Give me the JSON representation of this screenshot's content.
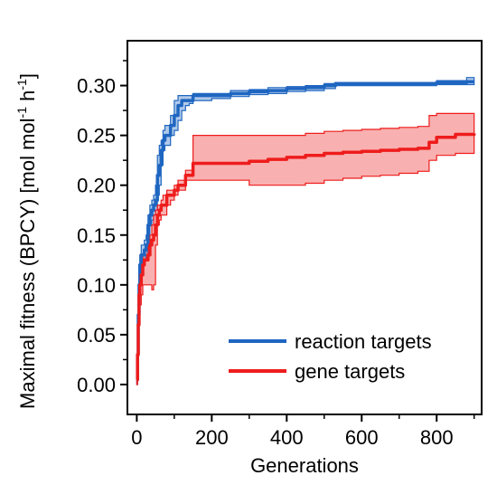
{
  "chart_data": {
    "type": "line",
    "xlabel": "Generations",
    "ylabel_main": "Maximal fitness (BPCY) [mol mol",
    "ylabel_sup1": "-1",
    "ylabel_mid": " h",
    "ylabel_sup2": "-1",
    "ylabel_end": "]",
    "xlim": [
      -25,
      920
    ],
    "ylim": [
      -0.03,
      0.345
    ],
    "x_ticks": [
      0,
      200,
      400,
      600,
      800
    ],
    "x_tick_labels": [
      "0",
      "200",
      "400",
      "600",
      "800"
    ],
    "y_ticks": [
      0.0,
      0.05,
      0.1,
      0.15,
      0.2,
      0.25,
      0.3
    ],
    "y_tick_labels": [
      "0.00",
      "0.05",
      "0.10",
      "0.15",
      "0.20",
      "0.25",
      "0.30"
    ],
    "legend_position": "bottom-right",
    "series": [
      {
        "name": "reaction targets",
        "color": "#1f66c1",
        "band_color": "#1f66c1",
        "x": [
          0,
          2,
          4,
          6,
          8,
          12,
          16,
          20,
          25,
          30,
          35,
          40,
          45,
          50,
          55,
          60,
          65,
          70,
          75,
          80,
          90,
          100,
          110,
          120,
          130,
          140,
          150,
          170,
          200,
          250,
          300,
          350,
          400,
          450,
          500,
          530,
          600,
          700,
          800,
          880,
          900
        ],
        "mean": [
          0.005,
          0.03,
          0.07,
          0.1,
          0.12,
          0.13,
          0.13,
          0.135,
          0.14,
          0.16,
          0.17,
          0.175,
          0.18,
          0.185,
          0.21,
          0.22,
          0.235,
          0.245,
          0.25,
          0.25,
          0.26,
          0.27,
          0.28,
          0.285,
          0.285,
          0.285,
          0.29,
          0.29,
          0.29,
          0.292,
          0.294,
          0.295,
          0.297,
          0.298,
          0.3,
          0.302,
          0.302,
          0.302,
          0.303,
          0.304,
          0.304
        ],
        "upper": [
          0.01,
          0.05,
          0.09,
          0.12,
          0.13,
          0.14,
          0.14,
          0.145,
          0.15,
          0.17,
          0.18,
          0.185,
          0.19,
          0.2,
          0.23,
          0.24,
          0.245,
          0.255,
          0.26,
          0.26,
          0.27,
          0.285,
          0.29,
          0.29,
          0.29,
          0.29,
          0.292,
          0.292,
          0.292,
          0.295,
          0.296,
          0.298,
          0.299,
          0.3,
          0.302,
          0.303,
          0.303,
          0.303,
          0.305,
          0.308,
          0.308
        ],
        "lower": [
          0.0,
          0.01,
          0.05,
          0.08,
          0.1,
          0.12,
          0.12,
          0.125,
          0.13,
          0.15,
          0.16,
          0.165,
          0.17,
          0.175,
          0.19,
          0.2,
          0.22,
          0.235,
          0.24,
          0.24,
          0.25,
          0.255,
          0.265,
          0.275,
          0.28,
          0.282,
          0.285,
          0.285,
          0.287,
          0.289,
          0.291,
          0.292,
          0.294,
          0.295,
          0.297,
          0.3,
          0.3,
          0.3,
          0.301,
          0.301,
          0.301
        ]
      },
      {
        "name": "gene targets",
        "color": "#ee1c1c",
        "band_color": "#ee1c1c",
        "x": [
          0,
          2,
          4,
          6,
          8,
          12,
          16,
          20,
          25,
          30,
          35,
          40,
          45,
          50,
          55,
          60,
          65,
          70,
          80,
          90,
          100,
          110,
          120,
          130,
          140,
          150,
          200,
          250,
          300,
          350,
          400,
          450,
          500,
          550,
          600,
          650,
          700,
          750,
          780,
          800,
          850,
          900
        ],
        "mean": [
          0.005,
          0.03,
          0.06,
          0.09,
          0.1,
          0.11,
          0.12,
          0.125,
          0.125,
          0.13,
          0.14,
          0.145,
          0.15,
          0.16,
          0.17,
          0.175,
          0.18,
          0.18,
          0.19,
          0.19,
          0.195,
          0.2,
          0.2,
          0.21,
          0.21,
          0.222,
          0.222,
          0.222,
          0.224,
          0.226,
          0.228,
          0.23,
          0.232,
          0.233,
          0.234,
          0.235,
          0.236,
          0.237,
          0.243,
          0.248,
          0.251,
          0.252
        ],
        "upper": [
          0.01,
          0.04,
          0.08,
          0.11,
          0.12,
          0.125,
          0.13,
          0.135,
          0.135,
          0.14,
          0.15,
          0.16,
          0.17,
          0.175,
          0.18,
          0.18,
          0.185,
          0.19,
          0.195,
          0.195,
          0.2,
          0.205,
          0.205,
          0.215,
          0.215,
          0.25,
          0.25,
          0.25,
          0.25,
          0.25,
          0.25,
          0.252,
          0.254,
          0.255,
          0.256,
          0.257,
          0.258,
          0.259,
          0.27,
          0.272,
          0.272,
          0.272
        ],
        "lower": [
          0.0,
          0.02,
          0.04,
          0.07,
          0.08,
          0.09,
          0.1,
          0.1,
          0.1,
          0.1,
          0.1,
          0.095,
          0.1,
          0.14,
          0.16,
          0.165,
          0.17,
          0.17,
          0.18,
          0.185,
          0.19,
          0.195,
          0.195,
          0.205,
          0.205,
          0.205,
          0.205,
          0.205,
          0.2,
          0.2,
          0.2,
          0.202,
          0.205,
          0.207,
          0.209,
          0.21,
          0.212,
          0.214,
          0.225,
          0.23,
          0.232,
          0.232
        ]
      }
    ]
  }
}
